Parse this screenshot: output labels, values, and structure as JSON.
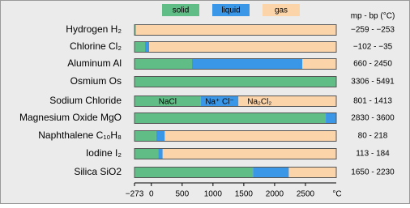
{
  "chart_data": {
    "type": "phase-bar",
    "legend": [
      {
        "name": "solid",
        "color": "#5fbd85"
      },
      {
        "name": "liquid",
        "color": "#3a97e8"
      },
      {
        "name": "gas",
        "color": "#fcd4aa"
      }
    ],
    "column_header": "mp - bp (°C)",
    "categories": [
      "Hydrogen  H₂",
      "Chlorine  Cl₂",
      "Aluminum  Al",
      "Osmium  Os",
      "Sodium Chloride",
      "Magnesium Oxide  MgO",
      "Naphthalene  C₁₀H₈",
      "Iodine  I₂",
      "Silica  SiO2"
    ],
    "mp": [
      -259,
      -102,
      660,
      3306,
      801,
      2830,
      80,
      113,
      1650
    ],
    "bp": [
      -253,
      -35,
      2450,
      5491,
      1413,
      3600,
      218,
      184,
      2230
    ],
    "value_labels": [
      "−259 - −253",
      "−102 - −35",
      "660 - 2450",
      "3306 - 5491",
      "801 - 1413",
      "2830 - 3600",
      "80 - 218",
      "113 - 184",
      "1650 - 2230"
    ],
    "annotations": [
      "NaCl",
      "Na⁺ Cl⁻",
      "Na₂Cl₂"
    ],
    "xlim": [
      -273,
      3000
    ],
    "xticks": [
      {
        "value": -273,
        "label": "−273"
      },
      0,
      500,
      1000,
      1500,
      2000,
      2500
    ],
    "xlabel": "°C"
  }
}
